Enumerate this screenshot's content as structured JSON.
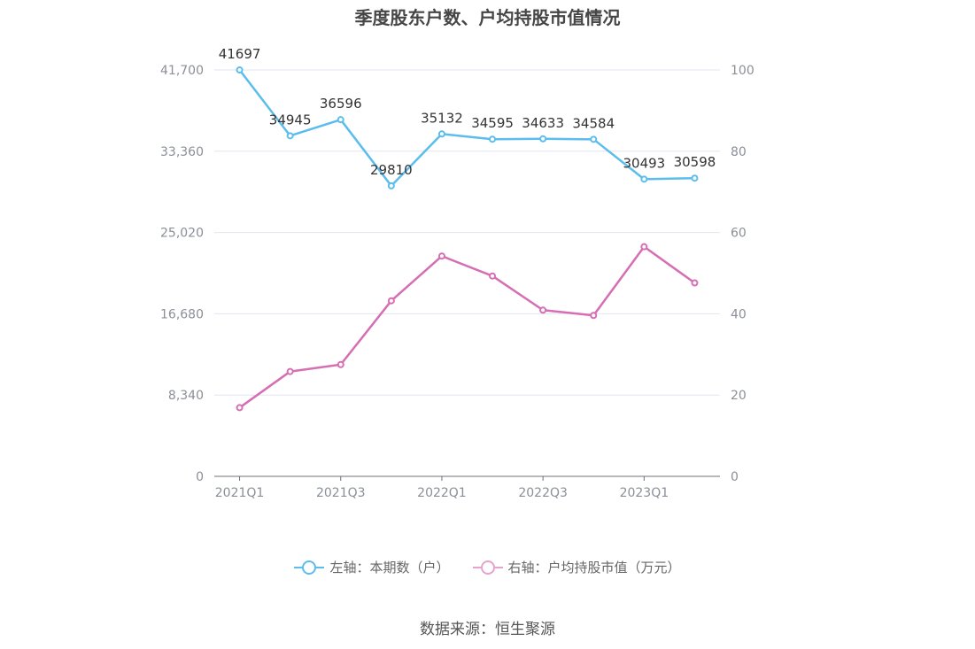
{
  "title": "季度股东户数、户均持股市值情况",
  "source": "数据来源：恒生聚源",
  "legend": [
    {
      "label": "左轴：本期数（户）",
      "color": "#5bbdee"
    },
    {
      "label": "右轴：户均持股市值（万元）",
      "color": "#e8a3cd"
    }
  ],
  "chart_data": {
    "type": "line",
    "x": [
      "2021Q1",
      "2021Q2",
      "2021Q3",
      "2021Q4",
      "2022Q1",
      "2022Q2",
      "2022Q3",
      "2022Q4",
      "2023Q1",
      "2023Q2"
    ],
    "x_tick_labels": [
      "2021Q1",
      "2021Q3",
      "2022Q1",
      "2022Q3",
      "2023Q1"
    ],
    "left_axis": {
      "ylim": [
        0,
        41700
      ],
      "ticks": [
        "0",
        "8,340",
        "16,680",
        "25,020",
        "33,360",
        "41,700"
      ]
    },
    "right_axis": {
      "ylim": [
        0,
        100
      ],
      "ticks": [
        "0",
        "20",
        "40",
        "60",
        "80",
        "100"
      ]
    },
    "series": [
      {
        "name": "左轴：本期数（户）",
        "axis": "left",
        "color": "#5bbdee",
        "values": [
          41697,
          34945,
          36596,
          29810,
          35132,
          34595,
          34633,
          34584,
          30493,
          30598
        ],
        "labels": [
          "41697",
          "34945",
          "36596",
          "29810",
          "35132",
          "34595",
          "34633",
          "34584",
          "30493",
          "30598"
        ]
      },
      {
        "name": "右轴：户均持股市值（万元）",
        "axis": "right",
        "color": "#d66eb4",
        "values": [
          16.9,
          25.8,
          27.5,
          43.2,
          54.2,
          49.3,
          40.9,
          39.6,
          56.5,
          47.6
        ]
      }
    ],
    "grid": true
  }
}
